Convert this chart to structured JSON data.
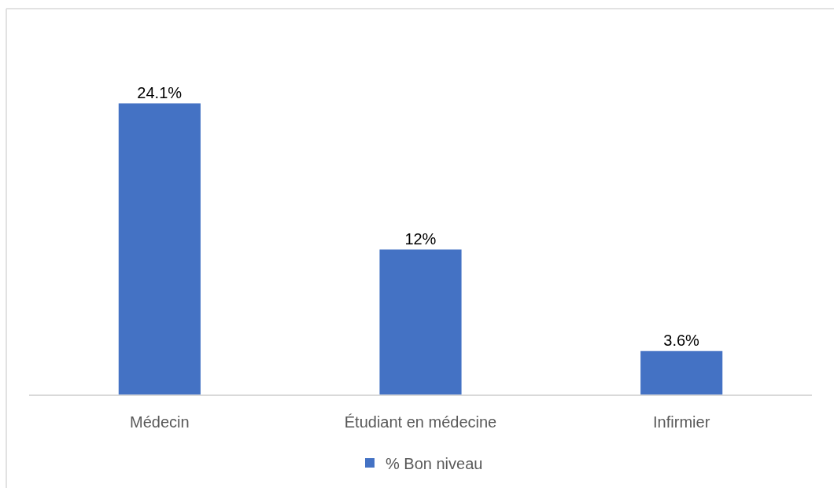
{
  "chart_data": {
    "type": "bar",
    "categories": [
      "Médecin",
      "Étudiant en médecine",
      "Infirmier"
    ],
    "series": [
      {
        "name": "% Bon niveau",
        "color": "#4472c4",
        "values": [
          24.1,
          12,
          3.6
        ],
        "value_labels": [
          "24.1%",
          "12%",
          "3.6%"
        ]
      }
    ],
    "legend": "bottom",
    "grid": false
  }
}
